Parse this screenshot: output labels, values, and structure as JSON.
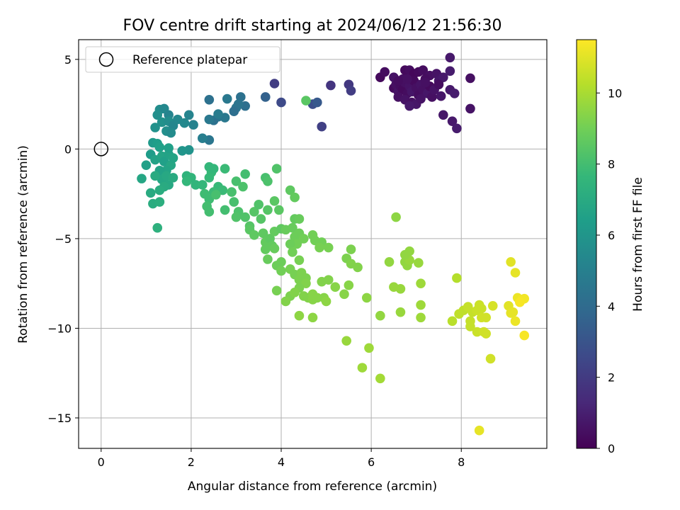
{
  "chart_data": {
    "type": "scatter",
    "title": "FOV centre drift starting at 2024/06/12 21:56:30",
    "xlabel": "Angular distance from reference (arcmin)",
    "ylabel": "Rotation from reference (arcmin)",
    "xlim": [
      -0.5,
      9.9
    ],
    "ylim": [
      -16.7,
      6.1
    ],
    "xticks": [
      0,
      2,
      4,
      6,
      8
    ],
    "yticks": [
      5,
      0,
      -5,
      -10,
      -15
    ],
    "xtick_labels": [
      "0",
      "2",
      "4",
      "6",
      "8"
    ],
    "ytick_labels": [
      "5",
      "0",
      "−5",
      "−10",
      "−15"
    ],
    "grid": true,
    "colormap": "viridis",
    "colorbar": {
      "label": "Hours from first FF file",
      "range": [
        0,
        11.5
      ],
      "ticks": [
        0,
        2,
        4,
        6,
        8,
        10
      ],
      "tick_labels": [
        "0",
        "2",
        "4",
        "6",
        "8",
        "10"
      ]
    },
    "legend": {
      "position": "top-left",
      "entries": [
        {
          "label": "Reference platepar",
          "marker": "open-circle"
        }
      ]
    },
    "reference_point": {
      "x": 0,
      "y": 0
    },
    "points": [
      [
        6.2,
        4.0,
        0.3
      ],
      [
        6.3,
        4.3,
        0.4
      ],
      [
        6.5,
        4.0,
        0.6
      ],
      [
        6.7,
        3.9,
        0.5
      ],
      [
        6.75,
        4.4,
        0.3
      ],
      [
        6.85,
        4.4,
        0.4
      ],
      [
        6.95,
        4.2,
        0.2
      ],
      [
        7.05,
        4.3,
        0.3
      ],
      [
        7.15,
        4.4,
        0.4
      ],
      [
        7.3,
        4.1,
        0.5
      ],
      [
        7.45,
        4.2,
        0.6
      ],
      [
        7.5,
        3.8,
        0.7
      ],
      [
        7.6,
        4.0,
        0.8
      ],
      [
        7.75,
        4.35,
        0.9
      ],
      [
        7.75,
        5.1,
        0.8
      ],
      [
        8.2,
        3.95,
        0.5
      ],
      [
        6.5,
        3.4,
        0.3
      ],
      [
        6.55,
        3.6,
        0.5
      ],
      [
        6.6,
        3.2,
        0.6
      ],
      [
        6.65,
        3.5,
        0.4
      ],
      [
        6.7,
        3.3,
        0.3
      ],
      [
        6.75,
        3.7,
        0.5
      ],
      [
        6.8,
        3.1,
        0.4
      ],
      [
        6.85,
        3.5,
        0.6
      ],
      [
        6.9,
        3.2,
        0.7
      ],
      [
        6.95,
        3.8,
        0.3
      ],
      [
        7.0,
        3.4,
        0.5
      ],
      [
        7.05,
        3.0,
        0.4
      ],
      [
        7.1,
        3.6,
        0.6
      ],
      [
        7.15,
        3.3,
        0.5
      ],
      [
        7.2,
        3.9,
        0.4
      ],
      [
        7.25,
        3.1,
        0.7
      ],
      [
        7.3,
        3.5,
        0.3
      ],
      [
        7.35,
        2.9,
        0.5
      ],
      [
        7.4,
        3.3,
        0.6
      ],
      [
        7.5,
        3.6,
        0.4
      ],
      [
        6.6,
        2.9,
        0.5
      ],
      [
        6.75,
        2.75,
        0.6
      ],
      [
        6.9,
        2.6,
        0.5
      ],
      [
        7.0,
        2.5,
        0.7
      ],
      [
        7.1,
        2.8,
        0.6
      ],
      [
        6.85,
        2.4,
        0.8
      ],
      [
        7.55,
        2.95,
        0.7
      ],
      [
        7.75,
        3.3,
        0.8
      ],
      [
        7.85,
        3.1,
        0.9
      ],
      [
        8.2,
        2.25,
        0.6
      ],
      [
        7.6,
        1.9,
        0.7
      ],
      [
        7.8,
        1.55,
        0.8
      ],
      [
        7.9,
        1.15,
        0.9
      ],
      [
        6.8,
        3.9,
        0.5
      ],
      [
        6.6,
        3.8,
        0.4
      ],
      [
        7.2,
        3.7,
        0.5
      ],
      [
        3.85,
        3.65,
        2.1
      ],
      [
        4.7,
        2.5,
        2.8
      ],
      [
        4.8,
        2.6,
        3.2
      ],
      [
        5.1,
        3.55,
        1.8
      ],
      [
        5.5,
        3.6,
        1.9
      ],
      [
        5.55,
        3.25,
        2.1
      ],
      [
        4.9,
        1.25,
        2.2
      ],
      [
        4.0,
        2.6,
        2.6
      ],
      [
        3.65,
        2.9,
        3.6
      ],
      [
        3.1,
        2.9,
        4.3
      ],
      [
        3.2,
        2.4,
        4.2
      ],
      [
        3.0,
        2.3,
        4.5
      ],
      [
        3.05,
        2.5,
        4.4
      ],
      [
        2.95,
        2.1,
        4.2
      ],
      [
        2.8,
        2.8,
        4.6
      ],
      [
        2.4,
        2.75,
        4.3
      ],
      [
        2.75,
        1.75,
        4.6
      ],
      [
        2.6,
        1.8,
        4.5
      ],
      [
        2.5,
        1.6,
        4.3
      ],
      [
        2.4,
        1.65,
        4.6
      ],
      [
        2.6,
        1.95,
        4.8
      ],
      [
        2.4,
        0.5,
        4.5
      ],
      [
        2.25,
        0.6,
        4.9
      ],
      [
        1.3,
        2.2,
        5.6
      ],
      [
        1.4,
        2.25,
        5.4
      ],
      [
        1.5,
        1.9,
        5.2
      ],
      [
        1.25,
        1.9,
        5.7
      ],
      [
        1.35,
        1.5,
        5.8
      ],
      [
        1.5,
        1.55,
        5.6
      ],
      [
        1.6,
        1.3,
        5.3
      ],
      [
        1.45,
        1.0,
        5.7
      ],
      [
        1.55,
        0.9,
        5.5
      ],
      [
        1.2,
        1.2,
        5.8
      ],
      [
        1.7,
        1.65,
        5.4
      ],
      [
        1.85,
        1.45,
        5.4
      ],
      [
        1.95,
        1.9,
        5.2
      ],
      [
        2.05,
        1.35,
        5.1
      ],
      [
        1.95,
        -0.05,
        5.9
      ],
      [
        1.8,
        -0.1,
        6.0
      ],
      [
        1.15,
        0.35,
        6.2
      ],
      [
        1.25,
        0.3,
        6.4
      ],
      [
        1.3,
        0.1,
        6.5
      ],
      [
        1.1,
        -0.3,
        6.3
      ],
      [
        1.0,
        -0.9,
        6.5
      ],
      [
        1.2,
        -0.6,
        6.6
      ],
      [
        1.35,
        -0.4,
        6.7
      ],
      [
        1.4,
        -0.7,
        6.5
      ],
      [
        1.5,
        -0.3,
        6.6
      ],
      [
        1.55,
        -0.9,
        6.8
      ],
      [
        1.45,
        -1.2,
        6.7
      ],
      [
        1.3,
        -1.2,
        6.6
      ],
      [
        1.35,
        -1.7,
        6.8
      ],
      [
        1.2,
        -1.5,
        7.0
      ],
      [
        1.45,
        -1.5,
        6.9
      ],
      [
        1.5,
        -2.0,
        6.9
      ],
      [
        1.4,
        -2.1,
        7.0
      ],
      [
        1.3,
        -2.3,
        7.1
      ],
      [
        0.9,
        -1.65,
        6.8
      ],
      [
        1.1,
        -2.45,
        7.0
      ],
      [
        1.15,
        -3.05,
        7.1
      ],
      [
        1.3,
        -2.95,
        7.2
      ],
      [
        1.25,
        -4.4,
        7.3
      ],
      [
        1.5,
        0.05,
        6.5
      ],
      [
        1.6,
        -0.5,
        6.7
      ],
      [
        1.6,
        -1.6,
        7.0
      ],
      [
        1.9,
        -1.5,
        7.4
      ],
      [
        2.0,
        -1.6,
        7.5
      ],
      [
        1.9,
        -1.8,
        7.6
      ],
      [
        2.1,
        -2.0,
        7.5
      ],
      [
        2.25,
        -2.0,
        7.6
      ],
      [
        2.4,
        -1.0,
        7.6
      ],
      [
        2.45,
        -1.3,
        7.7
      ],
      [
        2.5,
        -1.1,
        7.6
      ],
      [
        2.4,
        -1.6,
        7.7
      ],
      [
        2.75,
        -1.1,
        7.8
      ],
      [
        2.6,
        -2.1,
        7.7
      ],
      [
        2.7,
        -2.3,
        7.8
      ],
      [
        2.5,
        -2.4,
        7.8
      ],
      [
        2.3,
        -2.5,
        7.9
      ],
      [
        2.4,
        -2.8,
        7.9
      ],
      [
        2.35,
        -3.2,
        8.0
      ],
      [
        2.4,
        -3.5,
        8.0
      ],
      [
        2.55,
        -2.55,
        8.1
      ],
      [
        2.75,
        -3.4,
        8.0
      ],
      [
        2.9,
        -2.4,
        8.1
      ],
      [
        2.95,
        -2.95,
        8.1
      ],
      [
        3.0,
        -1.8,
        8.1
      ],
      [
        3.15,
        -2.1,
        8.2
      ],
      [
        3.2,
        -1.4,
        8.0
      ],
      [
        3.05,
        -3.5,
        8.2
      ],
      [
        3.0,
        -3.8,
        8.3
      ],
      [
        3.2,
        -3.8,
        8.3
      ],
      [
        3.3,
        -4.3,
        8.4
      ],
      [
        3.4,
        -3.5,
        8.4
      ],
      [
        3.5,
        -3.1,
        8.3
      ],
      [
        3.55,
        -3.9,
        8.4
      ],
      [
        3.65,
        -1.6,
        8.1
      ],
      [
        3.7,
        -1.8,
        8.2
      ],
      [
        3.7,
        -3.4,
        8.4
      ],
      [
        3.85,
        -2.9,
        8.5
      ],
      [
        3.9,
        -1.1,
        8.3
      ],
      [
        3.95,
        -3.4,
        8.5
      ],
      [
        3.3,
        -4.5,
        8.5
      ],
      [
        3.4,
        -4.8,
        8.6
      ],
      [
        3.6,
        -4.7,
        8.6
      ],
      [
        3.65,
        -5.2,
        8.7
      ],
      [
        3.75,
        -5.0,
        8.6
      ],
      [
        3.65,
        -5.6,
        8.7
      ],
      [
        3.8,
        -5.4,
        8.7
      ],
      [
        3.85,
        -5.55,
        8.8
      ],
      [
        3.85,
        -4.6,
        8.7
      ],
      [
        3.7,
        -6.15,
        8.8
      ],
      [
        3.9,
        -6.5,
        8.9
      ],
      [
        4.0,
        -6.3,
        8.9
      ],
      [
        4.0,
        -6.8,
        9.0
      ],
      [
        3.9,
        -7.9,
        9.1
      ],
      [
        4.0,
        -4.45,
        8.6
      ],
      [
        4.1,
        -4.5,
        8.8
      ],
      [
        4.2,
        -2.3,
        8.6
      ],
      [
        4.3,
        -2.7,
        8.7
      ],
      [
        4.3,
        -3.9,
        8.7
      ],
      [
        4.4,
        -3.9,
        8.8
      ],
      [
        4.25,
        -4.4,
        8.8
      ],
      [
        4.3,
        -4.9,
        8.9
      ],
      [
        4.4,
        -4.7,
        8.9
      ],
      [
        4.45,
        -5.0,
        8.9
      ],
      [
        4.5,
        -5.0,
        9.0
      ],
      [
        4.35,
        -5.3,
        9.0
      ],
      [
        4.2,
        -5.3,
        8.9
      ],
      [
        4.25,
        -5.75,
        9.0
      ],
      [
        4.4,
        -6.2,
        9.1
      ],
      [
        4.2,
        -6.7,
        9.1
      ],
      [
        4.3,
        -7.0,
        9.1
      ],
      [
        4.4,
        -7.3,
        9.2
      ],
      [
        4.45,
        -6.9,
        9.2
      ],
      [
        4.55,
        -7.2,
        9.2
      ],
      [
        4.55,
        -7.5,
        9.3
      ],
      [
        4.4,
        -7.75,
        9.2
      ],
      [
        4.2,
        -8.2,
        9.2
      ],
      [
        4.3,
        -8.0,
        9.3
      ],
      [
        4.5,
        -8.2,
        9.3
      ],
      [
        4.6,
        -8.3,
        9.3
      ],
      [
        4.7,
        -8.1,
        9.4
      ],
      [
        4.7,
        -8.4,
        9.4
      ],
      [
        4.8,
        -8.3,
        9.4
      ],
      [
        4.95,
        -8.3,
        9.4
      ],
      [
        5.0,
        -8.5,
        9.5
      ],
      [
        4.4,
        -9.3,
        9.5
      ],
      [
        4.7,
        -9.4,
        9.5
      ],
      [
        4.1,
        -8.5,
        9.3
      ],
      [
        4.7,
        -4.8,
        9.0
      ],
      [
        4.75,
        -5.1,
        9.0
      ],
      [
        4.9,
        -5.2,
        9.0
      ],
      [
        5.05,
        -5.5,
        9.1
      ],
      [
        4.85,
        -5.5,
        9.1
      ],
      [
        4.9,
        -7.4,
        9.3
      ],
      [
        5.05,
        -7.3,
        9.3
      ],
      [
        5.2,
        -7.7,
        9.4
      ],
      [
        5.4,
        -8.1,
        9.4
      ],
      [
        5.45,
        -6.1,
        9.2
      ],
      [
        5.55,
        -5.6,
        9.2
      ],
      [
        5.55,
        -6.4,
        9.3
      ],
      [
        5.5,
        -7.6,
        9.4
      ],
      [
        5.7,
        -6.6,
        9.3
      ],
      [
        5.9,
        -8.3,
        9.5
      ],
      [
        5.45,
        -10.7,
        9.7
      ],
      [
        5.95,
        -11.1,
        9.8
      ],
      [
        5.8,
        -12.2,
        9.8
      ],
      [
        6.2,
        -12.8,
        9.9
      ],
      [
        6.2,
        -9.3,
        9.6
      ],
      [
        6.4,
        -6.3,
        9.6
      ],
      [
        6.5,
        -7.7,
        9.7
      ],
      [
        6.55,
        -3.8,
        9.5
      ],
      [
        6.65,
        -7.8,
        9.7
      ],
      [
        6.65,
        -9.1,
        9.7
      ],
      [
        6.75,
        -6.3,
        9.6
      ],
      [
        6.8,
        -6.5,
        9.6
      ],
      [
        6.85,
        -6.2,
        9.7
      ],
      [
        6.85,
        -5.7,
        9.6
      ],
      [
        6.75,
        -5.9,
        9.6
      ],
      [
        7.05,
        -6.35,
        9.7
      ],
      [
        7.1,
        -7.5,
        9.8
      ],
      [
        7.1,
        -8.7,
        9.8
      ],
      [
        7.1,
        -9.4,
        9.8
      ],
      [
        4.55,
        2.7,
        8.5
      ],
      [
        7.9,
        -7.2,
        10.2
      ],
      [
        7.8,
        -9.6,
        10.3
      ],
      [
        7.95,
        -9.2,
        10.4
      ],
      [
        8.05,
        -9.0,
        10.4
      ],
      [
        8.15,
        -8.8,
        10.5
      ],
      [
        8.25,
        -9.1,
        10.5
      ],
      [
        8.2,
        -9.6,
        10.5
      ],
      [
        8.35,
        -9.0,
        10.6
      ],
      [
        8.4,
        -8.7,
        10.6
      ],
      [
        8.45,
        -8.9,
        10.6
      ],
      [
        8.35,
        -10.2,
        10.6
      ],
      [
        8.5,
        -10.2,
        10.7
      ],
      [
        8.55,
        -10.3,
        10.7
      ],
      [
        8.65,
        -11.7,
        10.7
      ],
      [
        8.45,
        -9.4,
        10.7
      ],
      [
        8.55,
        -9.4,
        10.7
      ],
      [
        8.7,
        -8.75,
        10.8
      ],
      [
        8.2,
        -9.9,
        10.5
      ],
      [
        8.4,
        -15.7,
        11.1
      ],
      [
        9.05,
        -8.75,
        11.0
      ],
      [
        9.1,
        -9.15,
        11.1
      ],
      [
        9.15,
        -9.1,
        11.1
      ],
      [
        9.1,
        -6.3,
        11.0
      ],
      [
        9.2,
        -6.9,
        11.1
      ],
      [
        9.25,
        -8.3,
        11.2
      ],
      [
        9.3,
        -8.5,
        11.2
      ],
      [
        9.35,
        -8.4,
        11.3
      ],
      [
        9.4,
        -8.35,
        11.3
      ],
      [
        9.2,
        -9.6,
        11.2
      ],
      [
        9.4,
        -10.4,
        11.4
      ],
      [
        9.3,
        -8.55,
        11.4
      ]
    ]
  }
}
